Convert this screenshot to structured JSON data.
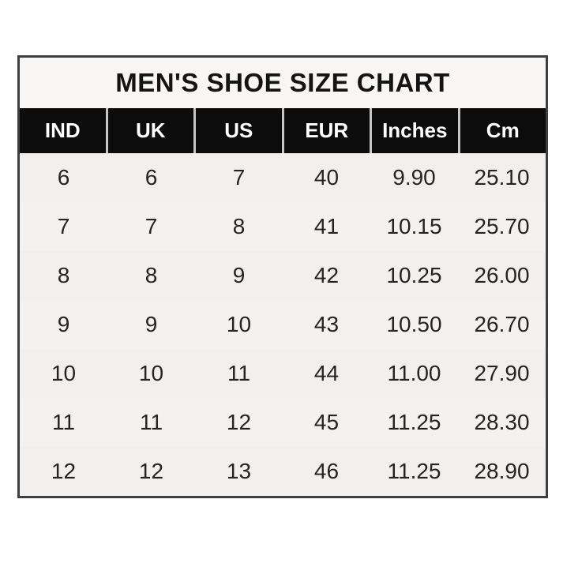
{
  "colors": {
    "outer_border": "#3e3e3e",
    "title_background": "#f8f7f5",
    "header_background": "#0c0c0c",
    "header_text": "#ffffff",
    "body_background": "#f1f0ee",
    "body_text": "#242424",
    "header_separator": "#c6c6c6"
  },
  "chart_data": {
    "type": "table",
    "title": "MEN'S SHOE SIZE CHART",
    "columns": [
      "IND",
      "UK",
      "US",
      "EUR",
      "Inches",
      "Cm"
    ],
    "rows": [
      [
        "6",
        "6",
        "7",
        "40",
        "9.90",
        "25.10"
      ],
      [
        "7",
        "7",
        "8",
        "41",
        "10.15",
        "25.70"
      ],
      [
        "8",
        "8",
        "9",
        "42",
        "10.25",
        "26.00"
      ],
      [
        "9",
        "9",
        "10",
        "43",
        "10.50",
        "26.70"
      ],
      [
        "10",
        "10",
        "11",
        "44",
        "11.00",
        "27.90"
      ],
      [
        "11",
        "11",
        "12",
        "45",
        "11.25",
        "28.30"
      ],
      [
        "12",
        "12",
        "13",
        "46",
        "11.25",
        "28.90"
      ]
    ]
  }
}
